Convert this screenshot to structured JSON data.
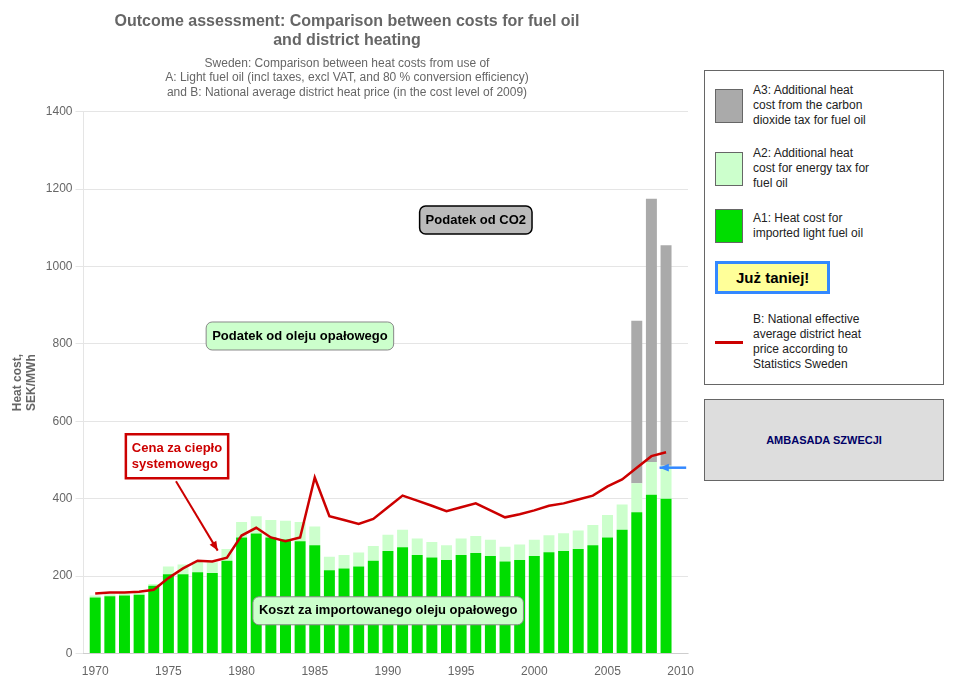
{
  "chart_data": {
    "type": "bar",
    "stacked": true,
    "title": "Outcome assessment: Comparison between costs for fuel oil\nand district heating",
    "subtitle": "Sweden: Comparison between heat costs from use of\nA: Light fuel oil (incl taxes, excl VAT, and 80 % conversion efficiency)\nand B: National average district heat price (in the cost level of 2009)",
    "ylabel": "Heat cost,\nSEK/MWh",
    "x": [
      1970,
      1971,
      1972,
      1973,
      1974,
      1975,
      1976,
      1977,
      1978,
      1979,
      1980,
      1981,
      1982,
      1983,
      1984,
      1985,
      1986,
      1987,
      1988,
      1989,
      1990,
      1991,
      1992,
      1993,
      1994,
      1995,
      1996,
      1997,
      1998,
      1999,
      2000,
      2001,
      2002,
      2003,
      2004,
      2005,
      2006,
      2007,
      2008,
      2009
    ],
    "series": [
      {
        "name": "A1: Heat cost for\nimported light fuel oil",
        "color": "#00DD00",
        "values": [
          145,
          148,
          150,
          152,
          175,
          205,
          205,
          210,
          208,
          240,
          300,
          310,
          300,
          295,
          290,
          280,
          215,
          220,
          225,
          240,
          265,
          275,
          255,
          248,
          242,
          255,
          260,
          252,
          238,
          242,
          252,
          262,
          265,
          270,
          280,
          300,
          320,
          365,
          410,
          400
        ]
      },
      {
        "name": "A2: Additional heat\ncost for energy tax for\nfuel oil",
        "color": "#CCFFCC",
        "values": [
          5,
          5,
          5,
          5,
          5,
          20,
          25,
          28,
          28,
          30,
          40,
          45,
          45,
          48,
          50,
          48,
          35,
          35,
          36,
          38,
          42,
          45,
          42,
          40,
          38,
          42,
          44,
          42,
          38,
          40,
          42,
          44,
          46,
          48,
          52,
          58,
          65,
          75,
          85,
          85
        ]
      },
      {
        "name": "A3: Additional heat\ncost from the carbon\ndioxide tax for fuel oil",
        "color": "#AAAAAA",
        "values": [
          0,
          0,
          0,
          0,
          0,
          0,
          0,
          0,
          0,
          0,
          0,
          0,
          0,
          0,
          0,
          0,
          0,
          0,
          0,
          0,
          0,
          0,
          0,
          0,
          0,
          0,
          0,
          0,
          0,
          0,
          0,
          0,
          0,
          0,
          0,
          0,
          0,
          420,
          680,
          570
        ]
      },
      {
        "name": "B: National effective\naverage district heat\nprice according to\nStatistics Sweden",
        "type": "line",
        "color": "#CC0000",
        "values": [
          155,
          158,
          158,
          160,
          165,
          195,
          220,
          240,
          238,
          248,
          305,
          325,
          300,
          290,
          300,
          455,
          355,
          345,
          335,
          348,
          378,
          408,
          395,
          382,
          368,
          378,
          388,
          370,
          352,
          360,
          370,
          382,
          388,
          398,
          408,
          432,
          450,
          480,
          510,
          520
        ]
      }
    ],
    "xlim": [
      1969.2,
      2010.5
    ],
    "xticks": [
      1970,
      1975,
      1980,
      1985,
      1990,
      1995,
      2000,
      2005,
      2010
    ],
    "ylim": [
      0,
      1400
    ],
    "yticks": [
      0,
      200,
      400,
      600,
      800,
      1000,
      1200,
      1400
    ],
    "grid": true,
    "annotations": [
      "Podatek od CO2",
      "Podatek od oleju opałowego",
      "Koszt za importowanego oleju opałowego",
      "Cena za ciepło\nsystemowego",
      "Już taniej!",
      "AMBASADA SZWECJI"
    ]
  }
}
